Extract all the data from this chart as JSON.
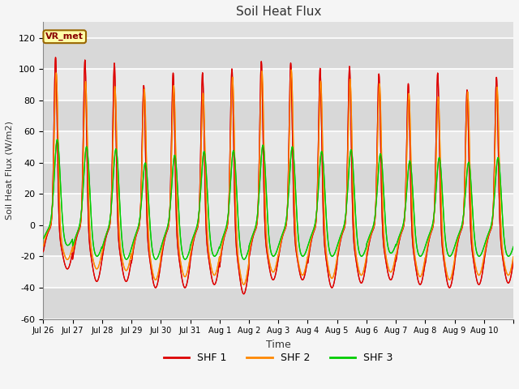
{
  "title": "Soil Heat Flux",
  "ylabel": "Soil Heat Flux (W/m2)",
  "xlabel": "Time",
  "ylim": [
    -60,
    130
  ],
  "yticks": [
    -60,
    -40,
    -20,
    0,
    20,
    40,
    60,
    80,
    100,
    120
  ],
  "colors": {
    "SHF 1": "#dd0000",
    "SHF 2": "#ff8800",
    "SHF 3": "#00cc00"
  },
  "legend_label": "VR_met",
  "bg_color": "#e0e0e0",
  "fig_bg": "#f5f5f5",
  "n_days": 16,
  "tick_labels": [
    "Jul 26",
    "Jul 27",
    "Jul 28",
    "Jul 29",
    "Jul 30",
    "Jul 31",
    "Aug 1",
    "Aug 2",
    "Aug 3",
    "Aug 4",
    "Aug 5",
    "Aug 6",
    "Aug 7",
    "Aug 8",
    "Aug 9",
    "Aug 10"
  ],
  "shf1_day_peak": [
    110,
    109,
    107,
    93,
    101,
    101,
    104,
    108,
    107,
    104,
    105,
    100,
    94,
    101,
    90,
    98
  ],
  "shf2_day_peak": [
    100,
    95,
    92,
    91,
    93,
    88,
    99,
    102,
    103,
    96,
    97,
    94,
    88,
    86,
    89,
    92
  ],
  "shf3_day_peak": [
    58,
    55,
    54,
    45,
    50,
    52,
    53,
    56,
    55,
    52,
    53,
    50,
    46,
    48,
    45,
    48
  ],
  "shf1_night_min": [
    -28,
    -36,
    -36,
    -40,
    -40,
    -38,
    -44,
    -35,
    -35,
    -40,
    -37,
    -35,
    -38,
    -40,
    -38,
    -37
  ],
  "shf2_night_min": [
    -22,
    -28,
    -29,
    -35,
    -33,
    -32,
    -38,
    -30,
    -32,
    -34,
    -32,
    -30,
    -33,
    -35,
    -32,
    -32
  ],
  "shf3_night_min": [
    -13,
    -20,
    -22,
    -22,
    -22,
    -20,
    -22,
    -20,
    -20,
    -20,
    -20,
    -18,
    -20,
    -20,
    -20,
    -20
  ],
  "pts_per_day": 144
}
